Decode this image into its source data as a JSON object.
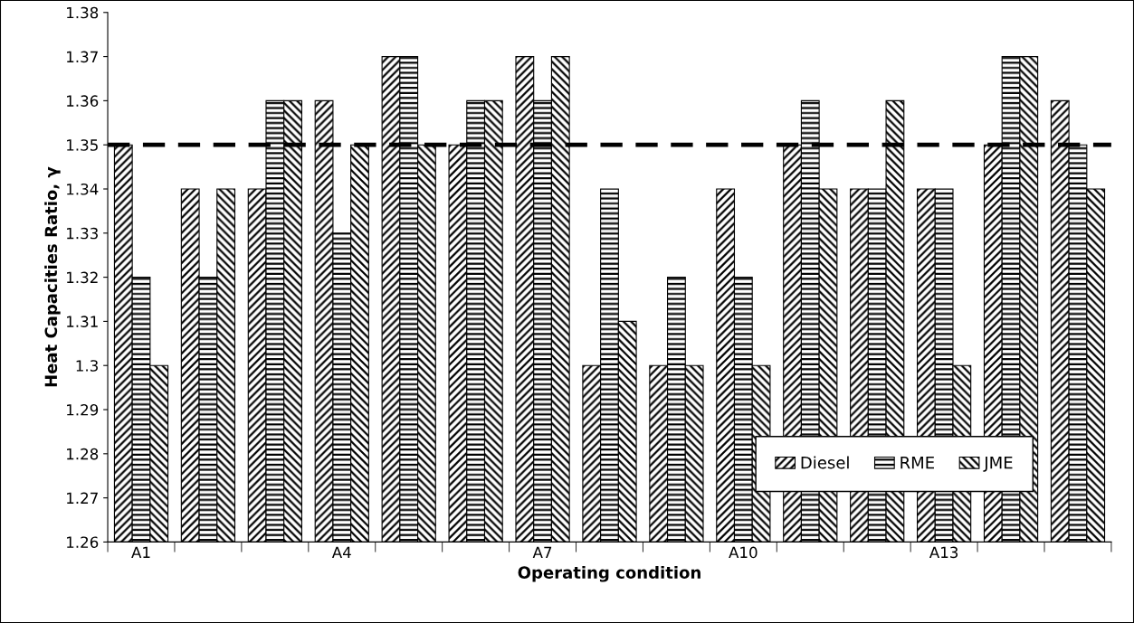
{
  "chart_data": {
    "type": "bar",
    "xlabel": "Operating condition",
    "ylabel": "Heat Capacities Ratio, γ",
    "categories": [
      "A1",
      null,
      null,
      "A4",
      null,
      null,
      "A7",
      null,
      null,
      "A10",
      null,
      null,
      "A13",
      null,
      null
    ],
    "series": [
      {
        "name": "Diesel",
        "color": "#000000",
        "values": [
          1.35,
          1.34,
          1.34,
          1.36,
          1.37,
          1.35,
          1.37,
          1.3,
          1.3,
          1.34,
          1.35,
          1.34,
          1.34,
          1.35,
          1.36
        ]
      },
      {
        "name": "RME",
        "color": "#000000",
        "values": [
          1.32,
          1.32,
          1.36,
          1.33,
          1.37,
          1.36,
          1.36,
          1.34,
          1.32,
          1.32,
          1.36,
          1.34,
          1.34,
          1.37,
          1.35
        ]
      },
      {
        "name": "JME",
        "color": "#000000",
        "values": [
          1.3,
          1.34,
          1.36,
          1.35,
          1.35,
          1.36,
          1.37,
          1.31,
          1.3,
          1.3,
          1.34,
          1.36,
          1.3,
          1.37,
          1.34
        ]
      }
    ],
    "ylim": [
      1.26,
      1.38
    ],
    "yticks": [
      1.26,
      1.27,
      1.28,
      1.29,
      1.3,
      1.31,
      1.32,
      1.33,
      1.34,
      1.35,
      1.36,
      1.37,
      1.38
    ],
    "ref_lines": [
      {
        "axis": "y",
        "value": 1.35,
        "color": "#000000",
        "line_style": "dashed"
      }
    ],
    "legend": "bottom right",
    "grid": false
  }
}
